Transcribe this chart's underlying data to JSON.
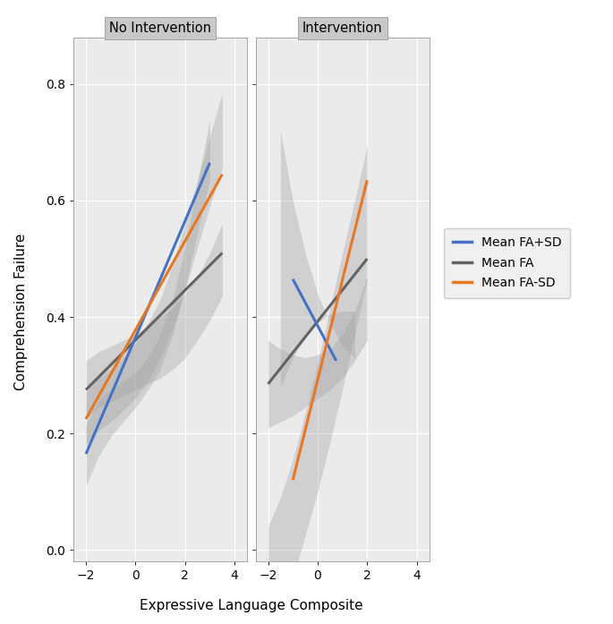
{
  "panel_titles": [
    "No Intervention",
    "Intervention"
  ],
  "xlabel": "Expressive Language Composite",
  "ylabel": "Comprehension Failure",
  "ylim": [
    -0.02,
    0.88
  ],
  "yticks": [
    0.0,
    0.2,
    0.4,
    0.6,
    0.8
  ],
  "xlim_left": [
    -2.5,
    4.5
  ],
  "xlim_right": [
    -2.5,
    4.5
  ],
  "xticks": [
    -2,
    0,
    2,
    4
  ],
  "background_color": "#ffffff",
  "panel_bg": "#ebebeb",
  "strip_bg": "#c8c8c8",
  "grid_color": "#ffffff",
  "ci_color": "#a0a0a0",
  "ci_alpha": 0.35,
  "colors": {
    "blue": "#4472C4",
    "gray": "#636363",
    "orange": "#E87722"
  },
  "line_width": 2.2,
  "legend_labels": [
    "Mean FA+SD",
    "Mean FA",
    "Mean FA-SD"
  ],
  "no_intervention": {
    "blue": {
      "x": [
        -2.0,
        3.0
      ],
      "y": [
        0.165,
        0.665
      ],
      "ci_x": [
        -2.0,
        -1.5,
        -1.0,
        -0.5,
        0.0,
        0.5,
        1.0,
        1.5,
        2.0,
        2.5,
        3.0
      ],
      "ci_upper": [
        0.215,
        0.255,
        0.275,
        0.29,
        0.305,
        0.33,
        0.37,
        0.43,
        0.52,
        0.63,
        0.74
      ],
      "ci_lower": [
        0.11,
        0.16,
        0.195,
        0.22,
        0.245,
        0.275,
        0.31,
        0.37,
        0.45,
        0.545,
        0.635
      ]
    },
    "gray": {
      "x": [
        -2.0,
        3.5
      ],
      "y": [
        0.275,
        0.51
      ],
      "ci_x": [
        -2.0,
        -1.5,
        -1.0,
        -0.5,
        0.0,
        0.5,
        1.0,
        1.5,
        2.0,
        2.5,
        3.0,
        3.5
      ],
      "ci_upper": [
        0.325,
        0.34,
        0.35,
        0.36,
        0.37,
        0.385,
        0.4,
        0.415,
        0.44,
        0.47,
        0.51,
        0.56
      ],
      "ci_lower": [
        0.225,
        0.245,
        0.255,
        0.265,
        0.275,
        0.285,
        0.295,
        0.31,
        0.33,
        0.36,
        0.395,
        0.435
      ]
    },
    "orange": {
      "x": [
        -2.0,
        3.5
      ],
      "y": [
        0.225,
        0.645
      ],
      "ci_x": [
        -2.0,
        -1.5,
        -1.0,
        -0.5,
        0.0,
        0.5,
        1.0,
        1.5,
        2.0,
        2.5,
        3.0,
        3.5
      ],
      "ci_upper": [
        0.27,
        0.295,
        0.31,
        0.33,
        0.355,
        0.39,
        0.43,
        0.49,
        0.56,
        0.635,
        0.71,
        0.785
      ],
      "ci_lower": [
        0.18,
        0.205,
        0.22,
        0.24,
        0.26,
        0.29,
        0.33,
        0.38,
        0.445,
        0.52,
        0.59,
        0.655
      ]
    }
  },
  "intervention": {
    "blue": {
      "x": [
        -1.0,
        0.75
      ],
      "y": [
        0.465,
        0.325
      ],
      "ci_x": [
        -1.5,
        -1.0,
        -0.5,
        0.0,
        0.5,
        1.0,
        1.5
      ],
      "ci_upper": [
        0.72,
        0.6,
        0.51,
        0.44,
        0.39,
        0.35,
        0.33
      ],
      "ci_lower": [
        0.28,
        0.33,
        0.365,
        0.39,
        0.405,
        0.41,
        0.41
      ]
    },
    "gray": {
      "x": [
        -2.0,
        2.0
      ],
      "y": [
        0.285,
        0.5
      ],
      "ci_x": [
        -2.0,
        -1.5,
        -1.0,
        -0.5,
        0.0,
        0.5,
        1.0,
        1.5,
        2.0
      ],
      "ci_upper": [
        0.36,
        0.345,
        0.335,
        0.33,
        0.335,
        0.345,
        0.37,
        0.41,
        0.47
      ],
      "ci_lower": [
        0.21,
        0.22,
        0.23,
        0.245,
        0.26,
        0.275,
        0.295,
        0.325,
        0.36
      ]
    },
    "orange": {
      "x": [
        -1.0,
        2.0
      ],
      "y": [
        0.12,
        0.635
      ],
      "ci_x": [
        -2.0,
        -1.5,
        -1.0,
        -0.5,
        0.0,
        0.5,
        1.0,
        1.5,
        2.0
      ],
      "ci_upper": [
        0.04,
        0.09,
        0.155,
        0.235,
        0.32,
        0.415,
        0.51,
        0.6,
        0.695
      ],
      "ci_lower": [
        -0.22,
        -0.13,
        -0.05,
        0.025,
        0.1,
        0.185,
        0.275,
        0.37,
        0.465
      ]
    }
  }
}
